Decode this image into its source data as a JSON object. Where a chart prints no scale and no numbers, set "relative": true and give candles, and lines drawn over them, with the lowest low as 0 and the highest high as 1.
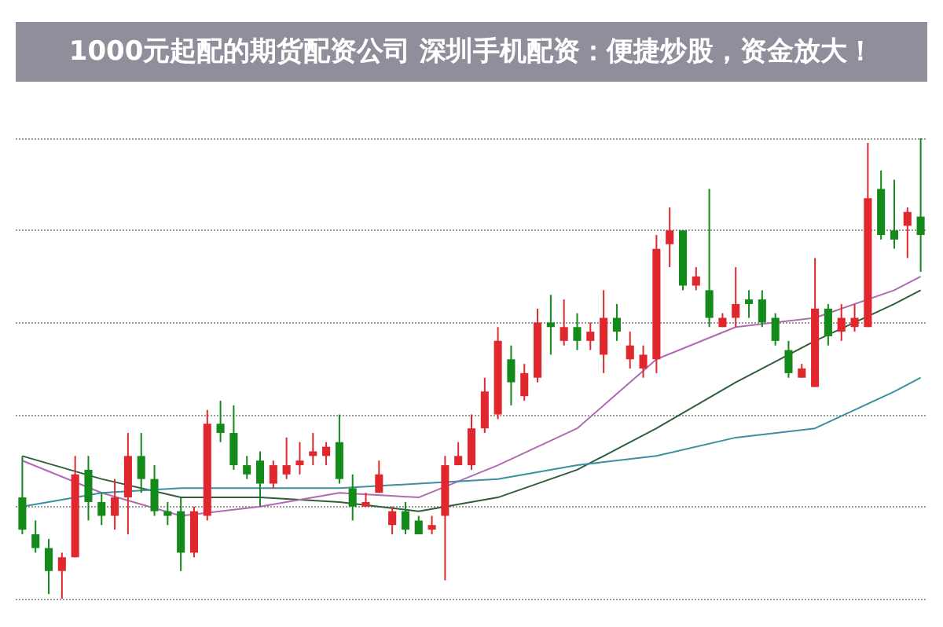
{
  "chart_data": {
    "type": "candlestick",
    "title": "1000元起配的期货配资公司 深圳手机配资：便捷炒股，资金放大！",
    "relative": true,
    "grid": "y",
    "categories": [
      null,
      null,
      null,
      null,
      null,
      null,
      null,
      null,
      null,
      null,
      null,
      null,
      null,
      null,
      null,
      null,
      null,
      null,
      null,
      null,
      null,
      null,
      null,
      null,
      null,
      null,
      null,
      null,
      null,
      null,
      null,
      null,
      null,
      null,
      null,
      null,
      null,
      null,
      null,
      null,
      null,
      null,
      null,
      null,
      null,
      null,
      null,
      null,
      null,
      null,
      null,
      null,
      null,
      null,
      null,
      null,
      null,
      null,
      null,
      null,
      null,
      null,
      null,
      null,
      null,
      null,
      null,
      null,
      null
    ],
    "ohlc": [
      [
        0.22,
        0.31,
        0.14,
        0.15
      ],
      [
        0.14,
        0.17,
        0.1,
        0.11
      ],
      [
        0.11,
        0.13,
        0.01,
        0.06
      ],
      [
        0.06,
        0.1,
        0,
        0.09
      ],
      [
        0.09,
        0.31,
        0.09,
        0.27
      ],
      [
        0.28,
        0.31,
        0.17,
        0.21
      ],
      [
        0.21,
        0.23,
        0.16,
        0.18
      ],
      [
        0.18,
        0.26,
        0.15,
        0.22
      ],
      [
        0.22,
        0.36,
        0.14,
        0.31
      ],
      [
        0.31,
        0.36,
        0.23,
        0.26
      ],
      [
        0.26,
        0.29,
        0.18,
        0.19
      ],
      [
        0.19,
        0.21,
        0.16,
        0.18
      ],
      [
        0.19,
        0.22,
        0.06,
        0.1
      ],
      [
        0.1,
        0.2,
        0.09,
        0.19
      ],
      [
        0.18,
        0.41,
        0.17,
        0.38
      ],
      [
        0.38,
        0.43,
        0.34,
        0.36
      ],
      [
        0.36,
        0.42,
        0.28,
        0.29
      ],
      [
        0.29,
        0.31,
        0.26,
        0.27
      ],
      [
        0.3,
        0.32,
        0.2,
        0.25
      ],
      [
        0.25,
        0.3,
        0.24,
        0.29
      ],
      [
        0.27,
        0.35,
        0.26,
        0.29
      ],
      [
        0.29,
        0.34,
        0.27,
        0.3
      ],
      [
        0.31,
        0.36,
        0.29,
        0.32
      ],
      [
        0.31,
        0.34,
        0.29,
        0.33
      ],
      [
        0.34,
        0.4,
        0.25,
        0.26
      ],
      [
        0.24,
        0.27,
        0.17,
        0.2
      ],
      [
        0.2,
        0.23,
        0.2,
        0.21
      ],
      [
        0.23,
        0.3,
        0.23,
        0.27
      ],
      [
        0.16,
        0.2,
        0.14,
        0.19
      ],
      [
        0.19,
        0.21,
        0.14,
        0.15
      ],
      [
        0.17,
        0.18,
        0.14,
        0.14
      ],
      [
        0.15,
        0.18,
        0.14,
        0.16
      ],
      [
        0.18,
        0.31,
        0.04,
        0.29
      ],
      [
        0.29,
        0.34,
        0.29,
        0.31
      ],
      [
        0.29,
        0.4,
        0.28,
        0.37
      ],
      [
        0.37,
        0.48,
        0.36,
        0.45
      ],
      [
        0.4,
        0.59,
        0.39,
        0.56
      ],
      [
        0.52,
        0.55,
        0.42,
        0.47
      ],
      [
        0.44,
        0.51,
        0.43,
        0.49
      ],
      [
        0.48,
        0.63,
        0.47,
        0.6
      ],
      [
        0.6,
        0.66,
        0.53,
        0.59
      ],
      [
        0.56,
        0.65,
        0.55,
        0.59
      ],
      [
        0.59,
        0.62,
        0.54,
        0.56
      ],
      [
        0.56,
        0.6,
        0.54,
        0.58
      ],
      [
        0.53,
        0.67,
        0.49,
        0.61
      ],
      [
        0.61,
        0.64,
        0.56,
        0.58
      ],
      [
        0.52,
        0.58,
        0.5,
        0.55
      ],
      [
        0.5,
        0.55,
        0.48,
        0.53
      ],
      [
        0.52,
        0.79,
        0.49,
        0.76
      ],
      [
        0.77,
        0.85,
        0.72,
        0.8
      ],
      [
        0.8,
        0.8,
        0.67,
        0.68
      ],
      [
        0.68,
        0.72,
        0.67,
        0.7
      ],
      [
        0.67,
        0.89,
        0.59,
        0.61
      ],
      [
        0.59,
        0.62,
        0.59,
        0.61
      ],
      [
        0.61,
        0.72,
        0.59,
        0.64
      ],
      [
        0.65,
        0.67,
        0.61,
        0.64
      ],
      [
        0.65,
        0.67,
        0.59,
        0.6
      ],
      [
        0.61,
        0.62,
        0.55,
        0.56
      ],
      [
        0.54,
        0.56,
        0.48,
        0.49
      ],
      [
        0.48,
        0.51,
        0.48,
        0.5
      ],
      [
        0.46,
        0.74,
        0.46,
        0.63
      ],
      [
        0.63,
        0.64,
        0.55,
        0.57
      ],
      [
        0.58,
        0.64,
        0.56,
        0.61
      ],
      [
        0.59,
        0.64,
        0.58,
        0.61
      ],
      [
        0.59,
        0.99,
        0.59,
        0.87
      ],
      [
        0.89,
        0.93,
        0.78,
        0.79
      ],
      [
        0.8,
        0.91,
        0.76,
        0.78
      ],
      [
        0.81,
        0.85,
        0.74,
        0.84
      ],
      [
        0.83,
        1,
        0.71,
        0.79
      ]
    ],
    "colors": [
      "#138a19",
      "#138a19",
      "#138a19",
      "#e0272d",
      "#e0272d",
      "#138a19",
      "#138a19",
      "#e0272d",
      "#e0272d",
      "#138a19",
      "#138a19",
      "#138a19",
      "#138a19",
      "#e0272d",
      "#e0272d",
      "#138a19",
      "#138a19",
      "#138a19",
      "#138a19",
      "#e0272d",
      "#e0272d",
      "#e0272d",
      "#e0272d",
      "#e0272d",
      "#138a19",
      "#138a19",
      "#e0272d",
      "#e0272d",
      "#e0272d",
      "#138a19",
      "#138a19",
      "#e0272d",
      "#e0272d",
      "#e0272d",
      "#e0272d",
      "#e0272d",
      "#e0272d",
      "#138a19",
      "#e0272d",
      "#e0272d",
      "#138a19",
      "#e0272d",
      "#138a19",
      "#e0272d",
      "#e0272d",
      "#138a19",
      "#e0272d",
      "#e0272d",
      "#e0272d",
      "#e0272d",
      "#138a19",
      "#e0272d",
      "#138a19",
      "#e0272d",
      "#e0272d",
      "#138a19",
      "#138a19",
      "#138a19",
      "#138a19",
      "#e0272d",
      "#e0272d",
      "#138a19",
      "#e0272d",
      "#e0272d",
      "#e0272d",
      "#138a19",
      "#138a19",
      "#e0272d",
      "#138a19"
    ],
    "series": [
      {
        "type": "line",
        "color": "#2e5e3a",
        "values": [
          0.31,
          null,
          null,
          null,
          null,
          null,
          0.26,
          null,
          null,
          null,
          null,
          null,
          0.22,
          null,
          null,
          null,
          null,
          null,
          0.22,
          null,
          null,
          null,
          null,
          null,
          0.21,
          null,
          null,
          null,
          null,
          null,
          0.19,
          null,
          null,
          null,
          null,
          null,
          0.22,
          null,
          null,
          null,
          null,
          null,
          0.28,
          null,
          null,
          null,
          null,
          null,
          0.37,
          null,
          null,
          null,
          null,
          null,
          0.47,
          null,
          null,
          null,
          null,
          null,
          0.56,
          null,
          null,
          null,
          null,
          null,
          0.64,
          null,
          0.67
        ]
      },
      {
        "type": "line",
        "color": "#b06ab3",
        "values": [
          0.3,
          null,
          null,
          null,
          null,
          null,
          0.23,
          null,
          null,
          null,
          null,
          null,
          0.18,
          null,
          null,
          null,
          null,
          null,
          0.2,
          null,
          null,
          null,
          null,
          null,
          0.23,
          null,
          null,
          null,
          null,
          null,
          0.22,
          null,
          null,
          null,
          null,
          null,
          0.29,
          null,
          null,
          null,
          null,
          null,
          0.37,
          null,
          null,
          null,
          null,
          null,
          0.52,
          null,
          null,
          null,
          null,
          null,
          0.59,
          null,
          null,
          null,
          null,
          null,
          0.61,
          null,
          null,
          null,
          null,
          null,
          0.67,
          null,
          0.7
        ]
      },
      {
        "type": "line",
        "color": "#3a8fa0",
        "values": [
          0.2,
          null,
          null,
          null,
          null,
          null,
          0.23,
          null,
          null,
          null,
          null,
          null,
          0.24,
          null,
          null,
          null,
          null,
          null,
          0.24,
          null,
          null,
          null,
          null,
          null,
          0.24,
          null,
          null,
          null,
          null,
          null,
          0.25,
          null,
          null,
          null,
          null,
          null,
          0.26,
          null,
          null,
          null,
          null,
          null,
          0.29,
          null,
          null,
          null,
          null,
          null,
          0.31,
          null,
          null,
          null,
          null,
          null,
          0.35,
          null,
          null,
          null,
          null,
          null,
          0.37,
          null,
          null,
          null,
          null,
          null,
          0.45,
          null,
          0.48
        ]
      }
    ]
  }
}
